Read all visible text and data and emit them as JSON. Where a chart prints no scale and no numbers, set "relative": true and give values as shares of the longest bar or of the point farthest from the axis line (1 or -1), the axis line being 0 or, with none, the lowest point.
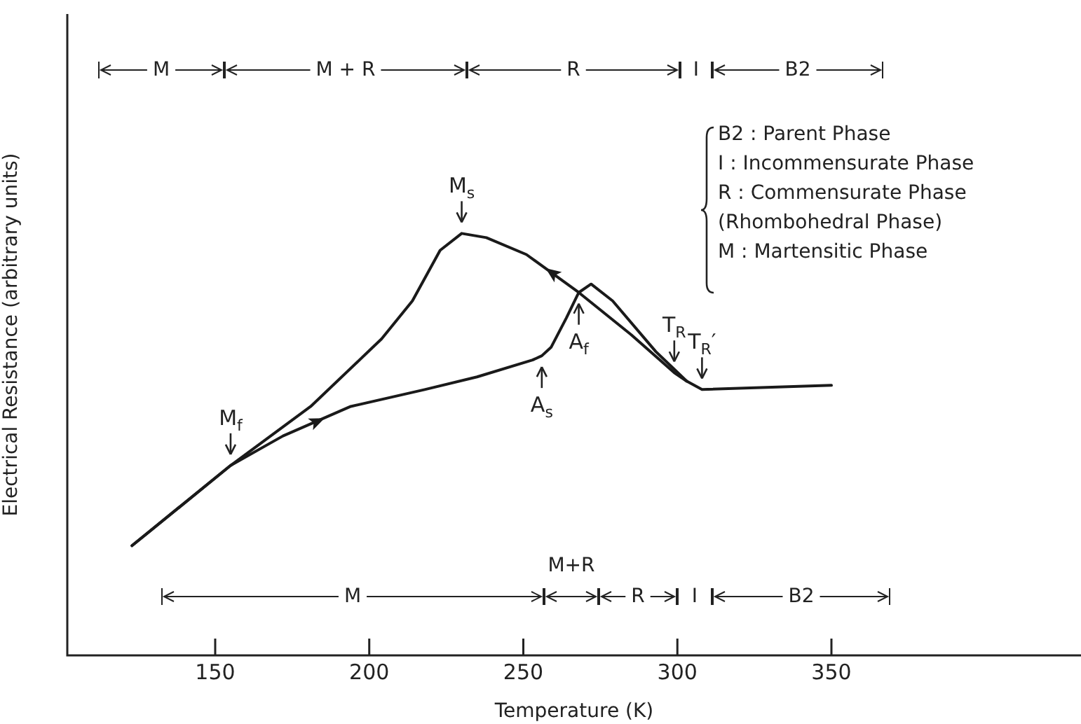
{
  "chart_data": {
    "type": "line",
    "xlabel": "Temperature (K)",
    "ylabel": "Electrical Resistance (arbitrary units)",
    "relative": true,
    "xlim": [
      102,
      431
    ],
    "xticks": [
      150,
      200,
      250,
      300,
      350
    ],
    "grid": false,
    "series": [
      {
        "color": "#1a1a1a",
        "x": [
          350,
          308,
          303,
          299,
          285,
          268,
          251,
          238,
          230,
          223,
          214,
          204,
          181,
          155,
          123
        ],
        "values": [
          0.64,
          0.63,
          0.65,
          0.67,
          0.76,
          0.86,
          0.95,
          0.99,
          1.0,
          0.96,
          0.84,
          0.75,
          0.59,
          0.45,
          0.26
        ]
      },
      {
        "color": "#1a1a1a",
        "x": [
          123,
          155,
          172,
          194,
          218,
          235,
          253,
          256,
          259,
          264,
          268,
          272,
          279,
          293,
          303
        ],
        "values": [
          0.26,
          0.45,
          0.52,
          0.59,
          0.63,
          0.66,
          0.7,
          0.71,
          0.73,
          0.8,
          0.86,
          0.88,
          0.84,
          0.72,
          0.65
        ]
      }
    ],
    "annotations": [
      {
        "text": "M$_{s}$",
        "x": 230,
        "y": 1.0
      },
      {
        "text": "M$_{f}$",
        "x": 155,
        "y": 0.45
      },
      {
        "text": "A$_{s}$",
        "x": 256,
        "y": 0.71
      },
      {
        "text": "A$_{f}$",
        "x": 268,
        "y": 0.86
      },
      {
        "text": "T$_{R}$",
        "x": 299,
        "y": 0.67
      },
      {
        "text": "T$_{R}$′",
        "x": 308,
        "y": 0.63
      },
      "M",
      "M + R",
      "R",
      "I",
      "B2",
      "M",
      "M+R",
      "R",
      "I",
      "B2",
      "B2 : Parent Phase",
      "I : Incommensurate Phase",
      "R : Commensurate Phase\n(Rhombohedral Phase)",
      "M : Martensitic Phase"
    ]
  }
}
